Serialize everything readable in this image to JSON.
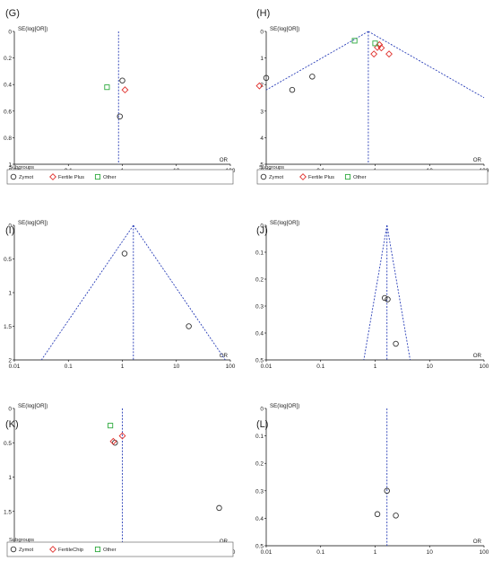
{
  "chart_data": [
    {
      "type": "scatter",
      "panel_label": "(G)",
      "ylabel": "SE(log[OR])",
      "xlabel": "OR",
      "x_scale": "log",
      "xlim": [
        0.01,
        100
      ],
      "ylim": [
        1,
        0
      ],
      "x_ticks": [
        "0.01",
        "0.1",
        "1",
        "10",
        "100"
      ],
      "y_ticks": [
        "0",
        "0.2",
        "0.4",
        "0.6",
        "0.8",
        "1"
      ],
      "center_line": 0.85,
      "funnel": false,
      "legend": {
        "title": "Subgroups",
        "entries": [
          "Zymot",
          "Fertile Plus",
          "Other"
        ]
      },
      "series": [
        {
          "name": "Zymot",
          "marker": "circle",
          "color": "#333333",
          "points": [
            [
              1.0,
              0.37
            ],
            [
              0.9,
              0.64
            ]
          ]
        },
        {
          "name": "Fertile Plus",
          "marker": "diamond",
          "color": "#e0302c",
          "points": [
            [
              1.12,
              0.44
            ]
          ]
        },
        {
          "name": "Other",
          "marker": "square",
          "color": "#2eaa3e",
          "points": [
            [
              0.52,
              0.42
            ]
          ]
        }
      ]
    },
    {
      "type": "scatter",
      "panel_label": "(H)",
      "ylabel": "SE(log[OR])",
      "xlabel": "OR",
      "x_scale": "log",
      "xlim": [
        0.01,
        100
      ],
      "ylim": [
        5,
        0
      ],
      "x_ticks": [
        "0.01",
        "0.1",
        "1",
        "10",
        "100"
      ],
      "y_ticks": [
        "0",
        "1",
        "2",
        "3",
        "4",
        "5"
      ],
      "center_line": 0.75,
      "funnel": true,
      "legend": {
        "title": "Subgroups",
        "entries": [
          "Zymot",
          "Fertile Plus",
          "Other"
        ]
      },
      "series": [
        {
          "name": "Zymot",
          "marker": "circle",
          "color": "#333333",
          "points": [
            [
              0.01,
              1.75
            ],
            [
              0.03,
              2.2
            ],
            [
              0.07,
              1.7
            ]
          ]
        },
        {
          "name": "Fertile Plus",
          "marker": "diamond",
          "color": "#e0302c",
          "points": [
            [
              0.95,
              0.85
            ],
            [
              1.1,
              0.6
            ],
            [
              1.2,
              0.5
            ],
            [
              1.3,
              0.62
            ],
            [
              1.8,
              0.85
            ],
            [
              0.0075,
              2.05
            ]
          ]
        },
        {
          "name": "Other",
          "marker": "square",
          "color": "#2eaa3e",
          "points": [
            [
              0.42,
              0.35
            ],
            [
              1.0,
              0.45
            ]
          ]
        }
      ]
    },
    {
      "type": "scatter",
      "panel_label": "(I)",
      "ylabel": "SE(log[OR])",
      "xlabel": "OR",
      "x_scale": "log",
      "xlim": [
        0.01,
        100
      ],
      "ylim": [
        2,
        0
      ],
      "x_ticks": [
        "0.01",
        "0.1",
        "1",
        "10",
        "100"
      ],
      "y_ticks": [
        "0",
        "0.5",
        "1",
        "1.5",
        "2"
      ],
      "center_line": 1.6,
      "funnel": true,
      "series": [
        {
          "name": "",
          "marker": "circle",
          "color": "#333333",
          "points": [
            [
              1.1,
              0.42
            ],
            [
              17,
              1.5
            ]
          ]
        }
      ]
    },
    {
      "type": "scatter",
      "panel_label": "(J)",
      "ylabel": "SE(log[OR])",
      "xlabel": "OR",
      "x_scale": "log",
      "xlim": [
        0.01,
        100
      ],
      "ylim": [
        0.5,
        0
      ],
      "x_ticks": [
        "0.01",
        "0.1",
        "1",
        "10",
        "100"
      ],
      "y_ticks": [
        "0",
        "0.1",
        "0.2",
        "0.3",
        "0.4",
        "0.5"
      ],
      "center_line": 1.65,
      "funnel": true,
      "series": [
        {
          "name": "",
          "marker": "circle",
          "color": "#333333",
          "points": [
            [
              1.5,
              0.27
            ],
            [
              1.7,
              0.275
            ],
            [
              2.4,
              0.44
            ]
          ]
        }
      ]
    },
    {
      "type": "scatter",
      "panel_label": "(K)",
      "ylabel": "SE(log[OR])",
      "xlabel": "OR",
      "x_scale": "log",
      "xlim": [
        0.01,
        100
      ],
      "ylim": [
        2,
        0
      ],
      "x_ticks": [
        "0.01",
        "0.1",
        "1",
        "10",
        "100"
      ],
      "y_ticks": [
        "0",
        "0.5",
        "1",
        "1.5",
        "2"
      ],
      "center_line": 1.0,
      "funnel": false,
      "legend": {
        "title": "Subgroups",
        "entries": [
          "Zymot",
          "FertileChip",
          "Other"
        ]
      },
      "series": [
        {
          "name": "Zymot",
          "marker": "circle",
          "color": "#333333",
          "points": [
            [
              0.73,
              0.5
            ],
            [
              62,
              1.45
            ]
          ]
        },
        {
          "name": "FertileChip",
          "marker": "diamond",
          "color": "#e0302c",
          "points": [
            [
              1.0,
              0.4
            ],
            [
              0.68,
              0.48
            ]
          ]
        },
        {
          "name": "Other",
          "marker": "square",
          "color": "#2eaa3e",
          "points": [
            [
              0.6,
              0.25
            ]
          ]
        }
      ]
    },
    {
      "type": "scatter",
      "panel_label": "(L)",
      "ylabel": "SE(log[OR])",
      "xlabel": "OR",
      "x_scale": "log",
      "xlim": [
        0.01,
        100
      ],
      "ylim": [
        0.5,
        0
      ],
      "x_ticks": [
        "0.01",
        "0.1",
        "1",
        "10",
        "100"
      ],
      "y_ticks": [
        "0",
        "0.1",
        "0.2",
        "0.3",
        "0.4",
        "0.5"
      ],
      "center_line": 1.65,
      "funnel": false,
      "series": [
        {
          "name": "",
          "marker": "circle",
          "color": "#333333",
          "points": [
            [
              1.65,
              0.3
            ],
            [
              1.1,
              0.385
            ],
            [
              2.4,
              0.39
            ]
          ]
        }
      ]
    }
  ]
}
